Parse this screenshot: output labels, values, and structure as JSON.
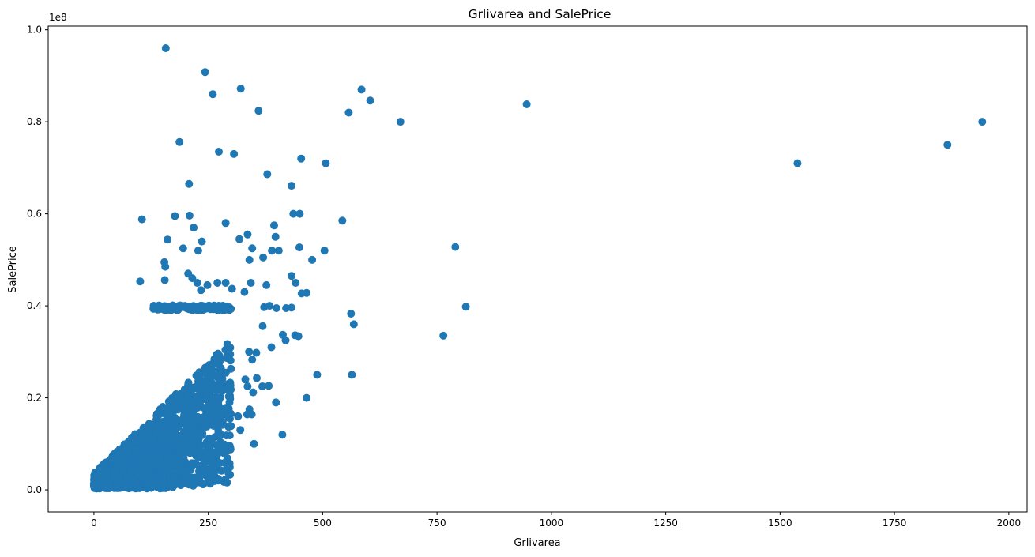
{
  "chart_data": {
    "type": "scatter",
    "title": "Grlivarea and SalePrice",
    "xlabel": "Grlivarea",
    "ylabel": "SalePrice",
    "y_offset_label": "1e8",
    "xlim": [
      -100,
      2040
    ],
    "ylim": [
      -0.048,
      1.008
    ],
    "x_ticks": [
      0,
      250,
      500,
      750,
      1000,
      1250,
      1500,
      1750,
      2000
    ],
    "y_ticks": [
      0.0,
      0.2,
      0.4,
      0.6,
      0.8,
      1.0
    ],
    "x_tick_labels": [
      "0",
      "250",
      "500",
      "750",
      "1000",
      "1250",
      "1500",
      "1750",
      "2000"
    ],
    "y_tick_labels": [
      "0.0",
      "0.2",
      "0.4",
      "0.6",
      "0.8",
      "1.0"
    ],
    "grid": false,
    "marker_color": "#1f77b4",
    "y_units_note": "SalePrice values in units of 1e8",
    "series": [
      {
        "points": [
          [
            157,
            0.96
          ],
          [
            243,
            0.908
          ],
          [
            260,
            0.86
          ],
          [
            321,
            0.872
          ],
          [
            360,
            0.824
          ],
          [
            585,
            0.87
          ],
          [
            604,
            0.846
          ],
          [
            557,
            0.82
          ],
          [
            670,
            0.8
          ],
          [
            946,
            0.838
          ],
          [
            187,
            0.756
          ],
          [
            273,
            0.735
          ],
          [
            306,
            0.73
          ],
          [
            453,
            0.72
          ],
          [
            507,
            0.71
          ],
          [
            379,
            0.686
          ],
          [
            432,
            0.661
          ],
          [
            208,
            0.665
          ],
          [
            1538,
            0.71
          ],
          [
            1866,
            0.75
          ],
          [
            1942,
            0.8
          ],
          [
            105,
            0.588
          ],
          [
            177,
            0.595
          ],
          [
            209,
            0.596
          ],
          [
            288,
            0.58
          ],
          [
            436,
            0.6
          ],
          [
            450,
            0.6
          ],
          [
            543,
            0.585
          ],
          [
            394,
            0.575
          ],
          [
            161,
            0.544
          ],
          [
            228,
            0.52
          ],
          [
            236,
            0.54
          ],
          [
            336,
            0.555
          ],
          [
            346,
            0.525
          ],
          [
            397,
            0.55
          ],
          [
            449,
            0.527
          ],
          [
            477,
            0.5
          ],
          [
            504,
            0.52
          ],
          [
            404,
            0.52
          ],
          [
            389,
            0.52
          ],
          [
            370,
            0.505
          ],
          [
            318,
            0.545
          ],
          [
            340,
            0.5
          ],
          [
            195,
            0.525
          ],
          [
            218,
            0.57
          ],
          [
            790,
            0.528
          ],
          [
            813,
            0.398
          ],
          [
            764,
            0.335
          ],
          [
            562,
            0.383
          ],
          [
            568,
            0.36
          ],
          [
            564,
            0.25
          ],
          [
            488,
            0.25
          ],
          [
            465,
            0.2
          ],
          [
            412,
            0.12
          ],
          [
            398,
            0.19
          ],
          [
            350,
            0.1
          ],
          [
            154,
            0.495
          ],
          [
            156,
            0.485
          ],
          [
            155,
            0.456
          ],
          [
            101,
            0.453
          ],
          [
            206,
            0.47
          ],
          [
            215,
            0.46
          ],
          [
            226,
            0.45
          ],
          [
            234,
            0.434
          ],
          [
            248,
            0.445
          ],
          [
            270,
            0.45
          ],
          [
            288,
            0.45
          ],
          [
            302,
            0.437
          ],
          [
            329,
            0.43
          ],
          [
            343,
            0.45
          ],
          [
            377,
            0.445
          ],
          [
            432,
            0.465
          ],
          [
            441,
            0.45
          ],
          [
            454,
            0.427
          ],
          [
            465,
            0.428
          ],
          [
            372,
            0.397
          ],
          [
            384,
            0.4
          ],
          [
            399,
            0.395
          ],
          [
            420,
            0.395
          ],
          [
            432,
            0.396
          ],
          [
            440,
            0.336
          ],
          [
            447,
            0.334
          ],
          [
            413,
            0.337
          ],
          [
            419,
            0.325
          ],
          [
            388,
            0.31
          ],
          [
            369,
            0.356
          ],
          [
            355,
            0.298
          ],
          [
            346,
            0.283
          ],
          [
            339,
            0.3
          ],
          [
            331,
            0.24
          ],
          [
            336,
            0.225
          ],
          [
            356,
            0.243
          ],
          [
            348,
            0.212
          ],
          [
            368,
            0.225
          ],
          [
            382,
            0.226
          ],
          [
            340,
            0.175
          ],
          [
            335,
            0.164
          ],
          [
            345,
            0.164
          ],
          [
            320,
            0.13
          ],
          [
            315,
            0.16
          ],
          [
            292,
            0.05
          ],
          [
            270,
            0.06
          ],
          [
            262,
            0.05
          ],
          [
            255,
            0.045
          ],
          [
            240,
            0.05
          ],
          [
            232,
            0.03
          ],
          [
            207,
            0.012
          ],
          [
            150,
            0.05
          ],
          [
            130,
            0.03
          ],
          [
            110,
            0.03
          ],
          [
            95,
            0.012
          ],
          [
            120,
            0.01
          ],
          [
            140,
            0.005
          ]
        ]
      }
    ],
    "dense_cluster": {
      "description_x_range": [
        0,
        300
      ],
      "description_y_range": [
        0.0,
        0.4
      ],
      "point_count": 1400,
      "seed": 7
    }
  }
}
